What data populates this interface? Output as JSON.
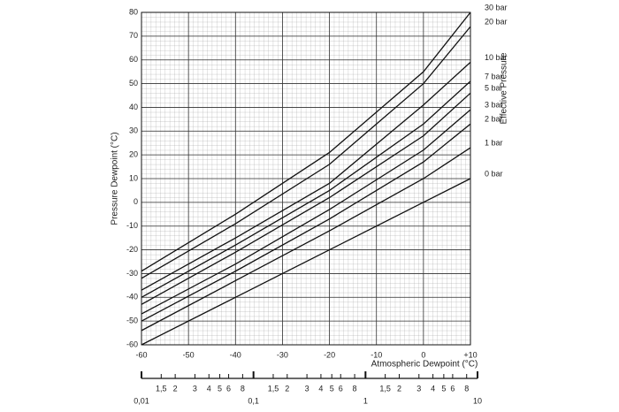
{
  "chart_data": {
    "type": "line",
    "y_label": "Pressure Dewpoint (°C)",
    "x_label": "Atmospheric Dewpoint (°C)",
    "legend_title": "Effective Pressure",
    "x": [
      -60,
      -40,
      -20,
      0,
      10
    ],
    "xlim": [
      -60,
      10
    ],
    "xticks": [
      -60,
      -50,
      -40,
      -30,
      -20,
      -10,
      0,
      {
        "value": 10,
        "label": "+10"
      }
    ],
    "ylim": [
      -60,
      80
    ],
    "yticks": [
      -60,
      -50,
      -40,
      -30,
      -20,
      -10,
      0,
      10,
      20,
      30,
      40,
      50,
      60,
      70,
      80
    ],
    "grid": true,
    "series": [
      {
        "name": "30 bar",
        "color": "#111",
        "values": [
          -29,
          -5,
          21,
          55,
          80
        ]
      },
      {
        "name": "20 bar",
        "color": "#111",
        "values": [
          -32,
          -9,
          16,
          50,
          74
        ]
      },
      {
        "name": "10 bar",
        "color": "#111",
        "values": [
          -37,
          -15,
          8,
          41,
          59
        ]
      },
      {
        "name": "7 bar",
        "color": "#111",
        "values": [
          -40,
          -18,
          5,
          33,
          51
        ]
      },
      {
        "name": "5 bar",
        "color": "#111",
        "values": [
          -43,
          -21,
          2,
          28,
          46
        ]
      },
      {
        "name": "3 bar",
        "color": "#111",
        "values": [
          -47,
          -26,
          -3,
          22,
          39
        ]
      },
      {
        "name": "2 bar",
        "color": "#111",
        "values": [
          -50,
          -29,
          -7,
          17,
          33
        ]
      },
      {
        "name": "1 bar",
        "color": "#111",
        "values": [
          -54,
          -33,
          -12,
          10,
          23
        ]
      },
      {
        "name": "0 bar",
        "color": "#111",
        "values": [
          -60,
          -40,
          -20,
          0,
          10
        ]
      }
    ],
    "bottom_scale": {
      "log": true,
      "lim": [
        0.01,
        10
      ],
      "ticks": [
        {
          "value": 0.01,
          "label": "0,01"
        },
        {
          "value": 0.015,
          "label": "1,5"
        },
        {
          "value": 0.02,
          "label": "2"
        },
        {
          "value": 0.03,
          "label": "3"
        },
        {
          "value": 0.04,
          "label": "4"
        },
        {
          "value": 0.05,
          "label": "5"
        },
        {
          "value": 0.06,
          "label": "6"
        },
        {
          "value": 0.08,
          "label": "8"
        },
        {
          "value": 0.1,
          "label": "0,1"
        },
        {
          "value": 0.15,
          "label": "1,5"
        },
        {
          "value": 0.2,
          "label": "2"
        },
        {
          "value": 0.3,
          "label": "3"
        },
        {
          "value": 0.4,
          "label": "4"
        },
        {
          "value": 0.5,
          "label": "5"
        },
        {
          "value": 0.6,
          "label": "6"
        },
        {
          "value": 0.8,
          "label": "8"
        },
        1,
        {
          "value": 1.5,
          "label": "1,5"
        },
        2,
        3,
        4,
        5,
        6,
        8,
        10
      ]
    }
  }
}
